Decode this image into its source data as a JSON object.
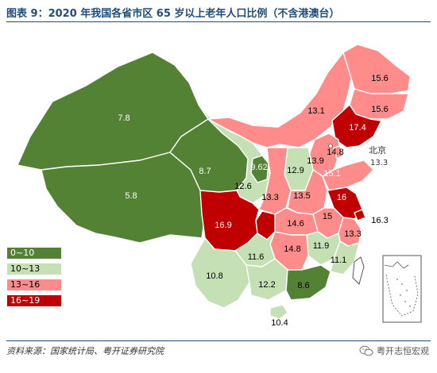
{
  "title": "图表 9：2020 年我国各省市区 65 岁以上老年人口比例（不含港澳台）",
  "legend": [
    {
      "label": "0~10",
      "color": "#548235"
    },
    {
      "label": "10~13",
      "color": "#c5e0b4"
    },
    {
      "label": "13~16",
      "color": "#ff8b8b"
    },
    {
      "label": "16~19",
      "color": "#c00000"
    }
  ],
  "regions": [
    {
      "id": "xinjiang",
      "value": "7.8",
      "band": 0
    },
    {
      "id": "tibet",
      "value": "5.8",
      "band": 0
    },
    {
      "id": "qinghai",
      "value": "8.7",
      "band": 0
    },
    {
      "id": "ningxia",
      "value": "9.62",
      "band": 0
    },
    {
      "id": "gansu",
      "value": "12.6",
      "band": 1
    },
    {
      "id": "inner-mongolia",
      "value": "13.1",
      "band": 2
    },
    {
      "id": "heilongjiang",
      "value": "15.6",
      "band": 2
    },
    {
      "id": "jilin",
      "value": "15.6",
      "band": 2
    },
    {
      "id": "liaoning",
      "value": "17.4",
      "band": 3
    },
    {
      "id": "hebei",
      "value": "13.9",
      "band": 2
    },
    {
      "id": "shanxi",
      "value": "12.9",
      "band": 1
    },
    {
      "id": "shaanxi",
      "value": "13.3",
      "band": 2
    },
    {
      "id": "henan",
      "value": "13.5",
      "band": 2
    },
    {
      "id": "shandong",
      "value": "15.1",
      "band": 2
    },
    {
      "id": "jiangsu",
      "value": "16",
      "band": 3
    },
    {
      "id": "anhui",
      "value": "15",
      "band": 2
    },
    {
      "id": "hubei",
      "value": "14.6",
      "band": 2
    },
    {
      "id": "sichuan",
      "value": "16.9",
      "band": 3
    },
    {
      "id": "chongqing",
      "value": "",
      "band": 3
    },
    {
      "id": "hunan",
      "value": "14.8",
      "band": 2
    },
    {
      "id": "jiangxi",
      "value": "11.9",
      "band": 1
    },
    {
      "id": "zhejiang",
      "value": "13.3",
      "band": 2
    },
    {
      "id": "fujian",
      "value": "11.1",
      "band": 1
    },
    {
      "id": "guizhou",
      "value": "11.6",
      "band": 1
    },
    {
      "id": "yunnan",
      "value": "10.8",
      "band": 1
    },
    {
      "id": "guangxi",
      "value": "12.2",
      "band": 1
    },
    {
      "id": "guangdong",
      "value": "8.6",
      "band": 0
    },
    {
      "id": "hainan",
      "value": "10.4",
      "band": 1
    },
    {
      "id": "tianjin",
      "value": "14.8",
      "band": 2
    },
    {
      "id": "shanghai",
      "value": "16.3",
      "band": 3
    }
  ],
  "beijing": {
    "name": "北京",
    "value": "13.3"
  },
  "source": "资料来源：国家统计局、粤开证券研究院",
  "brand": "粤开志恒宏观"
}
